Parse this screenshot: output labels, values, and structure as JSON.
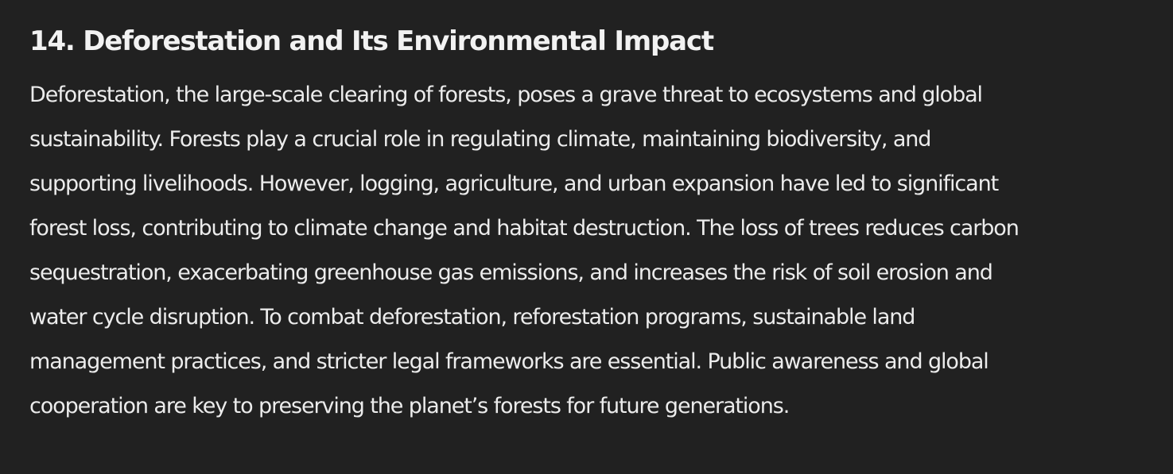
{
  "document": {
    "heading": "14. Deforestation and Its Environmental Impact",
    "paragraph_lines": [
      "Deforestation, the large-scale clearing of forests, poses a grave threat to ecosystems and global",
      "sustainability. Forests play a crucial role in regulating climate, maintaining biodiversity, and",
      "supporting livelihoods. However, logging, agriculture, and urban expansion have led to significant",
      "forest loss, contributing to climate change and habitat destruction. The loss of trees reduces carbon",
      "sequestration, exacerbating greenhouse gas emissions, and increases the risk of soil erosion and",
      "water cycle disruption. To combat deforestation, reforestation programs, sustainable land",
      "management practices, and stricter legal frameworks are essential. Public awareness and global",
      "cooperation are key to preserving the planet’s forests for future generations."
    ]
  },
  "colors": {
    "background": "#212121",
    "heading_text": "#f2f2f2",
    "body_text": "#ececec"
  }
}
